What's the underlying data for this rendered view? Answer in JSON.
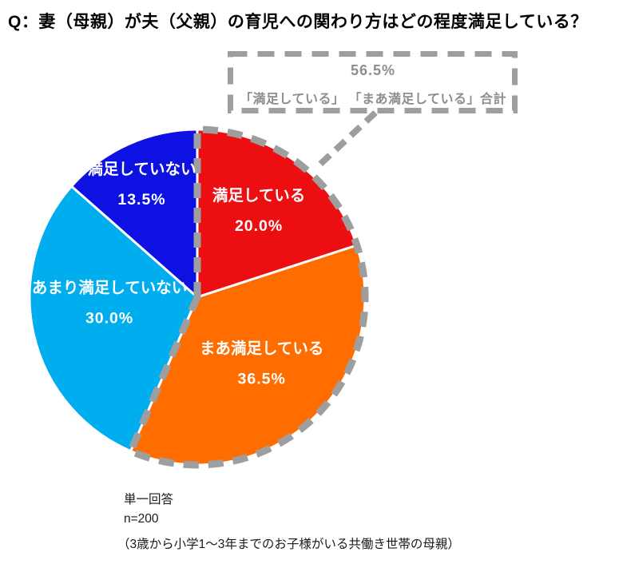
{
  "title": "Q：妻（母親）が夫（父親）の育児への関わり方はどの程度満足している？",
  "callout": {
    "total_label": "56.5%",
    "description": "「満足している」 「まあ満足している」合計"
  },
  "footnote": {
    "answer_type": "単一回答",
    "sample_size": "n=200",
    "sample_description": "（3歳から小学1～3年までのお子様がいる共働き世帯の母親）"
  },
  "accent_colors": {
    "dashed_gray": "#9e9e9e",
    "callout_text": "#8d8d8d"
  },
  "chart_data": {
    "type": "pie",
    "title": "妻（母親）が夫（父親）の育児への関わり方はどの程度満足している？",
    "direction": "clockwise",
    "start_angle_deg": 0,
    "legend_position": "none",
    "separator_color": "#ffffff",
    "label_color": "#ffffff",
    "slices": [
      {
        "label": "満足している",
        "value": 20.0,
        "value_label": "20.0%",
        "color": "#ed0e11"
      },
      {
        "label": "まあ満足している",
        "value": 36.5,
        "value_label": "36.5%",
        "color": "#ff6c00"
      },
      {
        "label": "あまり満足していない",
        "value": 30.0,
        "value_label": "30.0%",
        "color": "#00aeef"
      },
      {
        "label": "満足していない",
        "value": 13.5,
        "value_label": "13.5%",
        "color": "#0d12e3"
      }
    ],
    "highlight_group": {
      "slice_indexes": [
        0,
        1
      ],
      "total": 56.5,
      "total_label": "56.5%",
      "note": "「満足している」 「まあ満足している」合計",
      "outline_style": "dashed",
      "outline_color": "#9e9e9e"
    }
  }
}
